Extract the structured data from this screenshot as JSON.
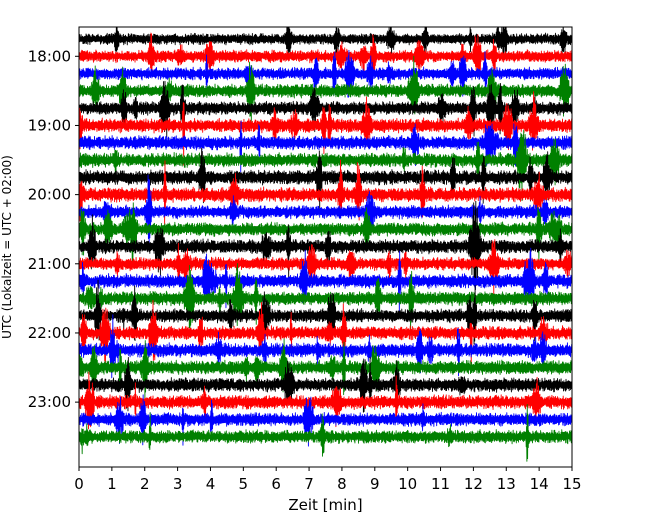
{
  "chart_data": {
    "type": "line",
    "title": "",
    "xlabel": "Zeit  [min]",
    "ylabel": "UTC (Lokalzeit = UTC + 02:00)",
    "xlim": [
      0,
      15
    ],
    "x_ticks": [
      "0",
      "1",
      "2",
      "3",
      "4",
      "5",
      "6",
      "7",
      "8",
      "9",
      "10",
      "11",
      "12",
      "13",
      "14",
      "15"
    ],
    "y_ticks": [
      "18:00",
      "19:00",
      "20:00",
      "21:00",
      "22:00",
      "23:00"
    ],
    "row_minutes": 15,
    "start_time": "17:45",
    "end_time": "23:45",
    "trace_colors_cycle": [
      "#000000",
      "#ff0000",
      "#0000ff",
      "#008000"
    ],
    "series": [
      {
        "start": "17:45",
        "color": "#000000",
        "amplitude": 0.25
      },
      {
        "start": "18:00",
        "color": "#ff0000",
        "amplitude": 0.35
      },
      {
        "start": "18:15",
        "color": "#0000ff",
        "amplitude": 0.35
      },
      {
        "start": "18:30",
        "color": "#008000",
        "amplitude": 0.45
      },
      {
        "start": "18:45",
        "color": "#000000",
        "amplitude": 0.45
      },
      {
        "start": "19:00",
        "color": "#ff0000",
        "amplitude": 0.5
      },
      {
        "start": "19:15",
        "color": "#0000ff",
        "amplitude": 0.5
      },
      {
        "start": "19:30",
        "color": "#008000",
        "amplitude": 0.5
      },
      {
        "start": "19:45",
        "color": "#000000",
        "amplitude": 0.55
      },
      {
        "start": "20:00",
        "color": "#ff0000",
        "amplitude": 0.55
      },
      {
        "start": "20:15",
        "color": "#0000ff",
        "amplitude": 0.45
      },
      {
        "start": "20:30",
        "color": "#008000",
        "amplitude": 0.45
      },
      {
        "start": "20:45",
        "color": "#000000",
        "amplitude": 0.5
      },
      {
        "start": "21:00",
        "color": "#ff0000",
        "amplitude": 0.4
      },
      {
        "start": "21:15",
        "color": "#0000ff",
        "amplitude": 0.5
      },
      {
        "start": "21:30",
        "color": "#008000",
        "amplitude": 0.5
      },
      {
        "start": "21:45",
        "color": "#000000",
        "amplitude": 0.45
      },
      {
        "start": "22:00",
        "color": "#ff0000",
        "amplitude": 0.45
      },
      {
        "start": "22:15",
        "color": "#0000ff",
        "amplitude": 0.5
      },
      {
        "start": "22:30",
        "color": "#008000",
        "amplitude": 0.5
      },
      {
        "start": "22:45",
        "color": "#000000",
        "amplitude": 0.5
      },
      {
        "start": "23:00",
        "color": "#ff0000",
        "amplitude": 0.5
      },
      {
        "start": "23:15",
        "color": "#0000ff",
        "amplitude": 0.45
      },
      {
        "start": "23:30",
        "color": "#008000",
        "amplitude": 0.45
      }
    ]
  }
}
